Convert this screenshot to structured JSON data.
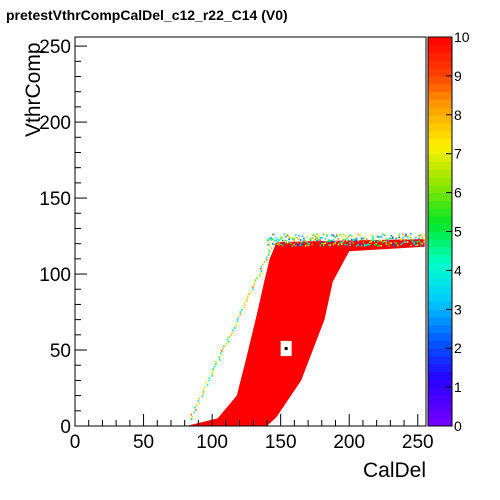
{
  "title": "pretestVthrCompCalDel_c12_r22_C14 (V0)",
  "chart_data": {
    "type": "heatmap",
    "title": "pretestVthrCompCalDel_c12_r22_C14 (V0)",
    "xlabel": "CalDel",
    "ylabel": "VthrComp",
    "xlim": [
      0,
      256
    ],
    "ylim": [
      0,
      256
    ],
    "x_ticks": [
      "0",
      "50",
      "100",
      "150",
      "200",
      "250"
    ],
    "y_ticks": [
      "0",
      "50",
      "100",
      "150",
      "200",
      "250"
    ],
    "z_range": [
      0,
      10
    ],
    "colorbar_ticks": [
      "0",
      "1",
      "2",
      "3",
      "4",
      "5",
      "6",
      "7",
      "8",
      "9",
      "10"
    ],
    "colormap": "rainbow",
    "colors": {
      "saturated": "#ff0000",
      "background": "#ffffff"
    },
    "regions": [
      {
        "name": "saturated-region",
        "value": 10,
        "polygon": [
          [
            81,
            0
          ],
          [
            104,
            5
          ],
          [
            118,
            20
          ],
          [
            125,
            45
          ],
          [
            133,
            75
          ],
          [
            138,
            95
          ],
          [
            142,
            110
          ],
          [
            147,
            121
          ],
          [
            192,
            122
          ],
          [
            255,
            123
          ],
          [
            255,
            118
          ],
          [
            200,
            115
          ],
          [
            188,
            95
          ],
          [
            182,
            70
          ],
          [
            165,
            30
          ],
          [
            147,
            6
          ],
          [
            140,
            0
          ]
        ]
      }
    ],
    "hole": {
      "x": [
        150,
        158
      ],
      "y": [
        46,
        56
      ]
    },
    "marker": {
      "x": 154,
      "y": 51
    }
  }
}
